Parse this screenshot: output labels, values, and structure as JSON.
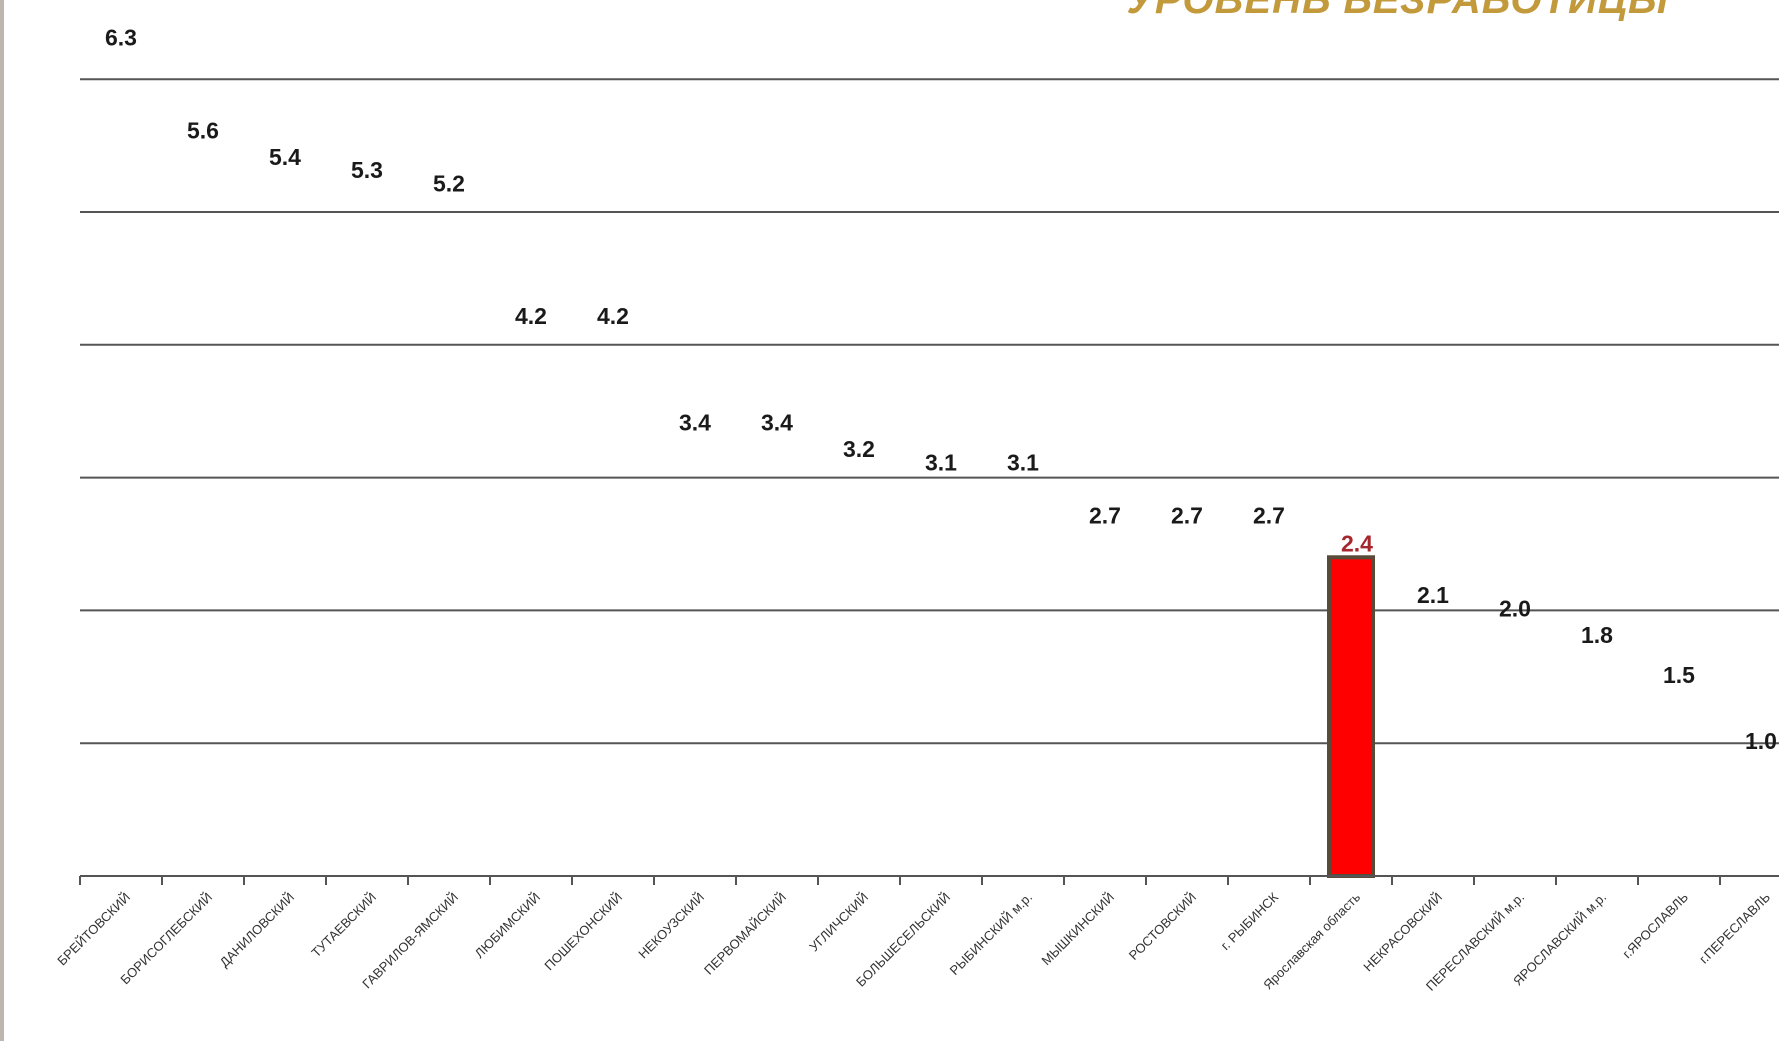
{
  "chart_data": {
    "type": "bar",
    "title": "УРОВЕНЬ БЕЗРАБОТИЦЫ",
    "xlabel": "",
    "ylabel": "",
    "ylim": [
      0,
      6
    ],
    "grid": true,
    "categories": [
      "БРЕЙТОВСКИЙ",
      "БОРИСОГЛЕБСКИЙ",
      "ДАНИЛОВСКИЙ",
      "ТУТАЕВСКИЙ",
      "ГАВРИЛОВ-ЯМСКИЙ",
      "ЛЮБИМСКИЙ",
      "ПОШЕХОНСКИЙ",
      "НЕКОУЗСКИЙ",
      "ПЕРВОМАЙСКИЙ",
      "УГЛИЧСКИЙ",
      "БОЛЬШЕСЕЛЬСКИЙ",
      "РЫБИНСКИЙ м.р.",
      "МЫШКИНСКИЙ",
      "РОСТОВСКИЙ",
      "г. РЫБИНСК",
      "Ярославская область",
      "НЕКРАСОВСКИЙ",
      "ПЕРЕСЛАВСКИЙ м.р.",
      "ЯРОСЛАВСКИЙ м.р.",
      "г.ЯРОСЛАВЛЬ",
      "г.ПЕРЕСЛАВЛЬ"
    ],
    "values": [
      6.3,
      5.6,
      5.4,
      5.3,
      5.2,
      4.2,
      4.2,
      3.4,
      3.4,
      3.2,
      3.1,
      3.1,
      2.7,
      2.7,
      2.7,
      2.4,
      2.1,
      2.0,
      1.8,
      1.5,
      1.0
    ],
    "value_labels": [
      "6.3",
      "5.6",
      "5.4",
      "5.3",
      "5.2",
      "4.2",
      "4.2",
      "3.4",
      "3.4",
      "3.2",
      "3.1",
      "3.1",
      "2.7",
      "2.7",
      "2.7",
      "2.4",
      "2.1",
      "2.0",
      "1.8",
      "1.5",
      "1.0"
    ],
    "highlight_index": 15,
    "colors": {
      "highlight_bar": "#ff0000",
      "highlight_bar_border": "#5a4a3a",
      "highlight_label": "#a5262d",
      "gridline": "#555555",
      "title": "#c29a3c"
    }
  }
}
